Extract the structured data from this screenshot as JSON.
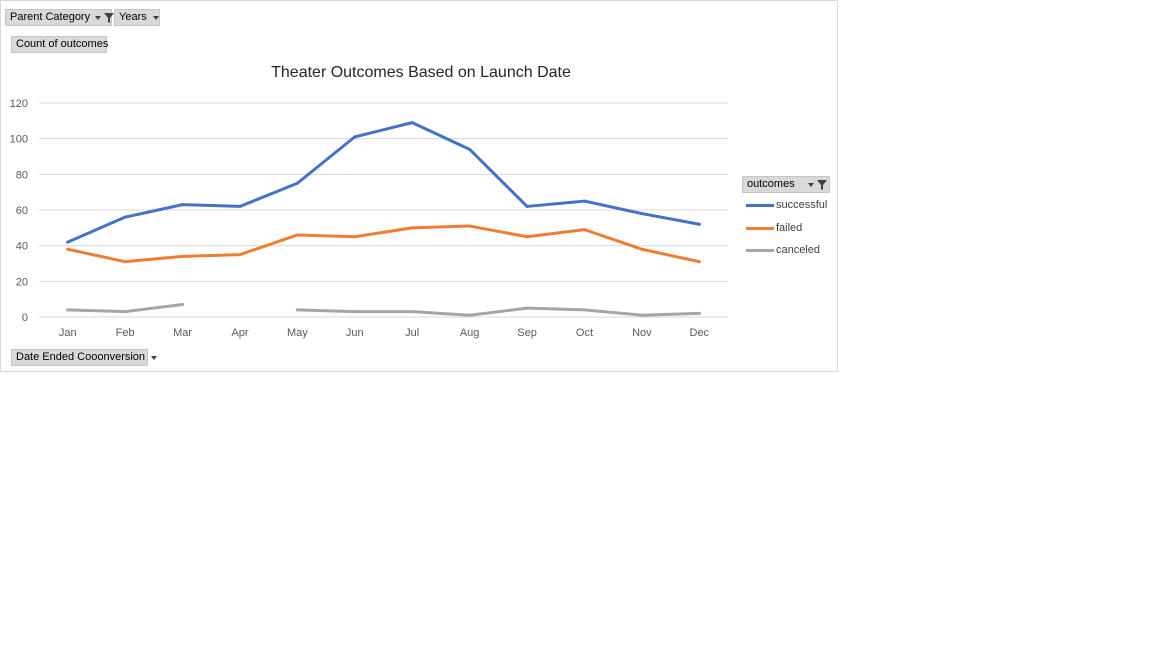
{
  "filters": {
    "parent_category": "Parent Category",
    "years": "Years",
    "count_of_outcomes": "Count of outcomes",
    "date_ended": "Date Ended Cooonversion",
    "outcomes": "outcomes"
  },
  "chart_data": {
    "type": "line",
    "title": "Theater Outcomes Based on Launch Date",
    "xlabel": "",
    "ylabel": "",
    "ylim": [
      0,
      120
    ],
    "yticks": [
      "0",
      "20",
      "40",
      "60",
      "80",
      "100",
      "120"
    ],
    "categories": [
      "Jan",
      "Feb",
      "Mar",
      "Apr",
      "May",
      "Jun",
      "Jul",
      "Aug",
      "Sep",
      "Oct",
      "Nov",
      "Dec"
    ],
    "grid": true,
    "legend_position": "right",
    "series": [
      {
        "name": "successful",
        "color": "#4472c4",
        "values": [
          42,
          56,
          63,
          62,
          75,
          101,
          109,
          94,
          62,
          65,
          58,
          52
        ]
      },
      {
        "name": "failed",
        "color": "#ed7d31",
        "values": [
          38,
          31,
          34,
          35,
          46,
          45,
          50,
          51,
          45,
          49,
          38,
          31
        ]
      },
      {
        "name": "canceled",
        "color": "#a5a5a5",
        "values": [
          4,
          3,
          7,
          null,
          4,
          3,
          3,
          1,
          5,
          4,
          1,
          2
        ]
      }
    ]
  }
}
